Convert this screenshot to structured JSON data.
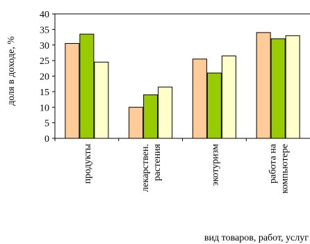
{
  "chart_data": {
    "type": "bar",
    "categories": [
      "продукты",
      "лекарствен. растения",
      "экотуризм",
      "работа на компьютере"
    ],
    "category_lines": [
      [
        "продукты"
      ],
      [
        "лекарствен.",
        "растения"
      ],
      [
        "экотуризм"
      ],
      [
        "работа на",
        "компьютере"
      ]
    ],
    "series": [
      {
        "values": [
          30.5,
          10,
          25.5,
          34
        ],
        "color": "#FFCC99"
      },
      {
        "values": [
          33.5,
          14,
          21,
          32
        ],
        "color": "#99CC00"
      },
      {
        "values": [
          24.5,
          16.5,
          26.5,
          33
        ],
        "color": "#FFFFCC"
      }
    ],
    "ylabel": "доля в доходе, %",
    "xlabel": "вид товаров, работ, услуг",
    "ylim": [
      0,
      40
    ],
    "yticks": [
      0,
      5,
      10,
      15,
      20,
      25,
      30,
      35,
      40
    ],
    "grid": false,
    "legend": "none"
  }
}
